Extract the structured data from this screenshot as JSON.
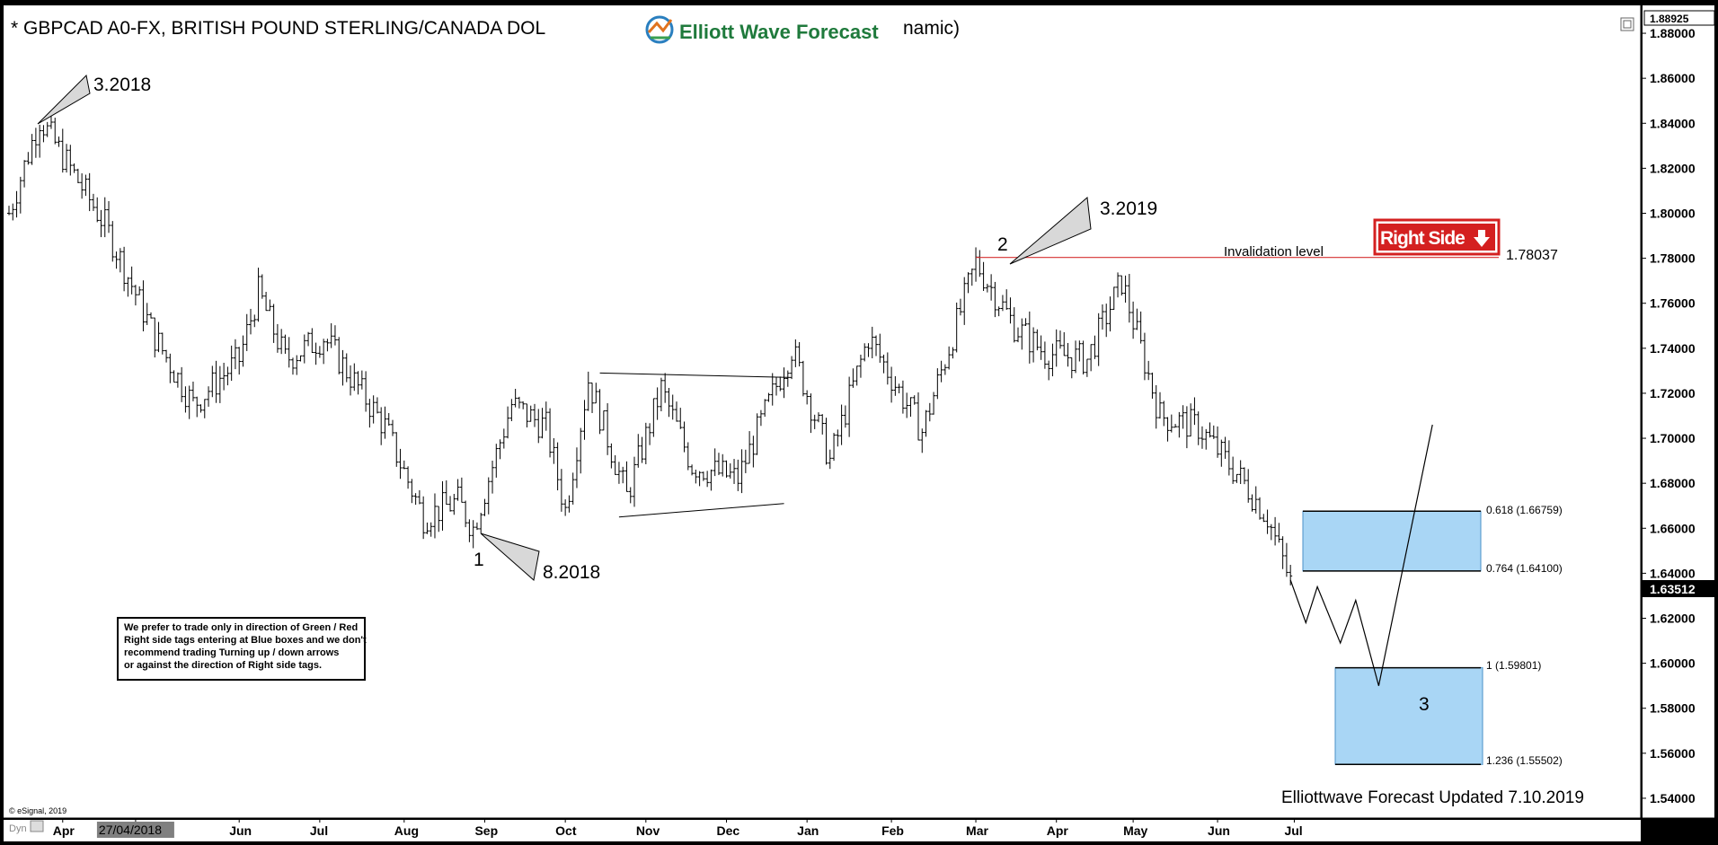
{
  "chart_data": {
    "type": "candlestick-ohlc",
    "title": "* GBPCAD A0-FX, BRITISH POUND STERLING/CANADA DOL",
    "title_suffix": "namic)",
    "brand": "Elliott Wave Forecast",
    "ylim": [
      1.53,
      1.89
    ],
    "y_ticks": [
      "1.88000",
      "1.86000",
      "1.84000",
      "1.82000",
      "1.80000",
      "1.78000",
      "1.76000",
      "1.74000",
      "1.72000",
      "1.70000",
      "1.68000",
      "1.66000",
      "1.64000",
      "1.62000",
      "1.60000",
      "1.58000",
      "1.56000",
      "1.54000"
    ],
    "y_tick_values": [
      1.88,
      1.86,
      1.84,
      1.82,
      1.8,
      1.78,
      1.76,
      1.74,
      1.72,
      1.7,
      1.68,
      1.66,
      1.64,
      1.62,
      1.6,
      1.58,
      1.56,
      1.54
    ],
    "y_top_label": "1.88925",
    "last_price": "1.63512",
    "last_price_value": 1.63512,
    "x_months": [
      "Apr",
      "27/04/2018",
      "Jun",
      "Jul",
      "Aug",
      "Sep",
      "Oct",
      "Nov",
      "Dec",
      "Jan",
      "Feb",
      "Mar",
      "Apr",
      "May",
      "Jun",
      "Jul"
    ],
    "x_month_index": [
      14,
      33,
      60,
      81,
      103,
      124,
      145,
      166,
      187,
      208,
      230,
      252,
      273,
      293,
      315,
      335
    ],
    "bar_count": 345,
    "key_points": [
      {
        "i": 0,
        "v": 1.8
      },
      {
        "i": 8,
        "v": 1.842
      },
      {
        "i": 25,
        "v": 1.795
      },
      {
        "i": 38,
        "v": 1.745
      },
      {
        "i": 48,
        "v": 1.715
      },
      {
        "i": 60,
        "v": 1.735
      },
      {
        "i": 65,
        "v": 1.765
      },
      {
        "i": 72,
        "v": 1.735
      },
      {
        "i": 82,
        "v": 1.745
      },
      {
        "i": 98,
        "v": 1.705
      },
      {
        "i": 108,
        "v": 1.665
      },
      {
        "i": 117,
        "v": 1.672
      },
      {
        "i": 121,
        "v": 1.66
      },
      {
        "i": 131,
        "v": 1.715
      },
      {
        "i": 140,
        "v": 1.705
      },
      {
        "i": 145,
        "v": 1.668
      },
      {
        "i": 151,
        "v": 1.726
      },
      {
        "i": 161,
        "v": 1.674
      },
      {
        "i": 170,
        "v": 1.722
      },
      {
        "i": 178,
        "v": 1.688
      },
      {
        "i": 190,
        "v": 1.682
      },
      {
        "i": 204,
        "v": 1.74
      },
      {
        "i": 214,
        "v": 1.69
      },
      {
        "i": 224,
        "v": 1.745
      },
      {
        "i": 238,
        "v": 1.703
      },
      {
        "i": 252,
        "v": 1.778
      },
      {
        "i": 262,
        "v": 1.75
      },
      {
        "i": 270,
        "v": 1.738
      },
      {
        "i": 281,
        "v": 1.735
      },
      {
        "i": 290,
        "v": 1.77
      },
      {
        "i": 300,
        "v": 1.71
      },
      {
        "i": 310,
        "v": 1.705
      },
      {
        "i": 322,
        "v": 1.68
      },
      {
        "i": 328,
        "v": 1.665
      },
      {
        "i": 334,
        "v": 1.636
      }
    ],
    "wave_labels": [
      {
        "label": "1",
        "i": 121,
        "v": 1.66,
        "date": "8.2018"
      },
      {
        "label": "2",
        "i": 252,
        "v": 1.78037,
        "date": "3.2019"
      },
      {
        "label": "3",
        "i": 355,
        "v": 1.5901
      }
    ],
    "projection_path": [
      {
        "i": 334,
        "v": 1.637
      },
      {
        "i": 338,
        "v": 1.618
      },
      {
        "i": 341,
        "v": 1.634
      },
      {
        "i": 347,
        "v": 1.609
      },
      {
        "i": 351,
        "v": 1.628
      },
      {
        "i": 357,
        "v": 1.59
      },
      {
        "i": 371,
        "v": 1.706
      }
    ],
    "invalidation": {
      "label": "Invalidation level",
      "value": 1.78037,
      "value_label": "1.78037"
    },
    "fib_levels": [
      {
        "label": "0.618 (1.66759)",
        "value": 1.66759
      },
      {
        "label": "0.764 (1.64100)",
        "value": 1.641
      },
      {
        "label": "1 (1.59801)",
        "value": 1.59801
      },
      {
        "label": "1.236 (1.55502)",
        "value": 1.55502
      }
    ],
    "blue_boxes": [
      {
        "top": 1.66759,
        "bottom": 1.641
      },
      {
        "top": 1.59801,
        "bottom": 1.55502
      }
    ],
    "annotations": {
      "peak_2018": "3.2018",
      "right_side_tag": "Right Side",
      "disclaimer": [
        "We prefer to trade only in direction of Green / Red",
        "Right side tags entering at Blue boxes and we don't",
        "recommend trading Turning up / down arrows",
        "or against the direction of Right side tags."
      ],
      "updated": "Elliottwave Forecast Updated 7.10.2019",
      "copyright": "© eSignal, 2019",
      "dyn": "Dyn"
    },
    "colors": {
      "bars": "#000000",
      "blue_box": "#a9d6f5",
      "invalidation_line": "#d63030",
      "right_side": "#d42020",
      "brand_text": "#1f7a3c"
    }
  }
}
